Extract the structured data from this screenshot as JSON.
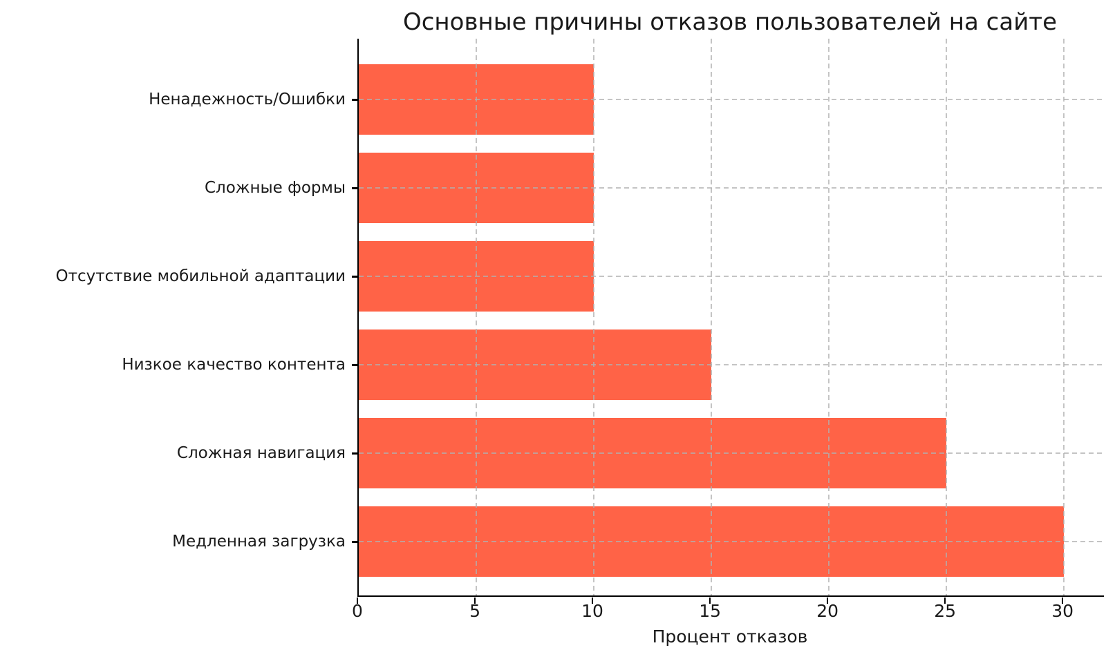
{
  "chart_data": {
    "type": "bar",
    "orientation": "horizontal",
    "title": "Основные причины отказов пользователей на сайте",
    "xlabel": "Процент отказов",
    "ylabel": "",
    "categories": [
      "Ненадежность/Ошибки",
      "Сложные формы",
      "Отсутствие мобильной адаптации",
      "Низкое качество контента",
      "Сложная навигация",
      "Медленная загрузка"
    ],
    "values": [
      10,
      10,
      10,
      15,
      25,
      30
    ],
    "xticks": [
      0,
      5,
      10,
      15,
      20,
      25,
      30
    ],
    "xlim": [
      0,
      31.7
    ],
    "bar_color": "#FF6347",
    "grid": {
      "style": "dashed",
      "color": "#b0b0b0",
      "alpha": 0.7,
      "position": "above-bars",
      "axes": "both"
    },
    "legend": "none",
    "background": "#ffffff",
    "spines": [
      "left",
      "bottom"
    ]
  }
}
